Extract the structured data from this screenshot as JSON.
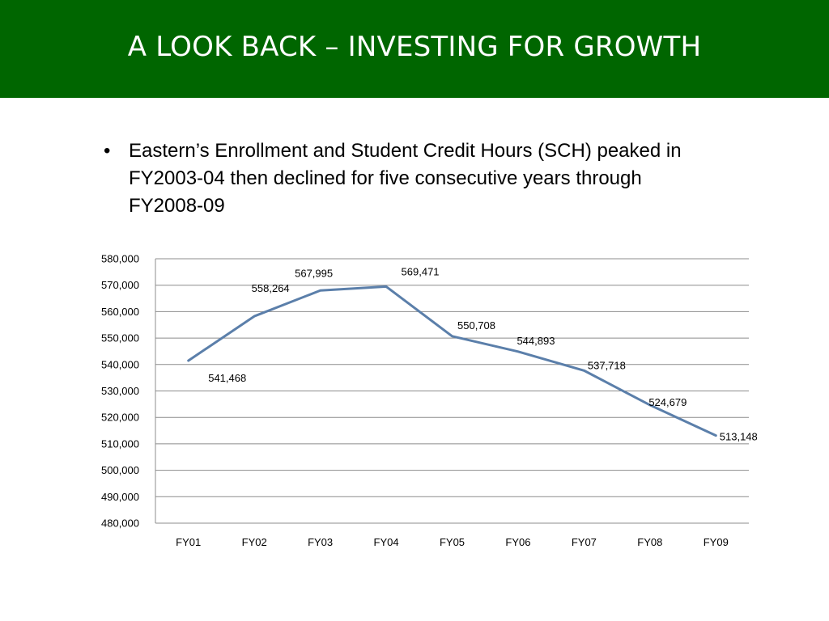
{
  "slide": {
    "title": "A LOOK BACK – INVESTING FOR GROWTH",
    "header_color": "#006600",
    "bullets": [
      {
        "marker": "•",
        "text": "Eastern’s Enrollment and Student Credit Hours (SCH) peaked in FY2003-04 then declined for five consecutive years through FY2008-09"
      }
    ]
  },
  "chart_data": {
    "type": "line",
    "categories": [
      "FY01",
      "FY02",
      "FY03",
      "FY04",
      "FY05",
      "FY06",
      "FY07",
      "FY08",
      "FY09"
    ],
    "series": [
      {
        "values": [
          541468,
          558264,
          567995,
          569471,
          550708,
          544893,
          537718,
          524679,
          513148
        ],
        "labels": [
          "541,468",
          "558,264",
          "567,995",
          "569,471",
          "550,708",
          "544,893",
          "537,718",
          "524,679",
          "513,148"
        ],
        "color": "#5b7faa"
      }
    ],
    "yticks": [
      "480,000",
      "490,000",
      "500,000",
      "510,000",
      "520,000",
      "530,000",
      "540,000",
      "550,000",
      "560,000",
      "570,000",
      "580,000"
    ],
    "ylim": [
      480000,
      580000
    ],
    "grid": true,
    "legend": "none"
  }
}
